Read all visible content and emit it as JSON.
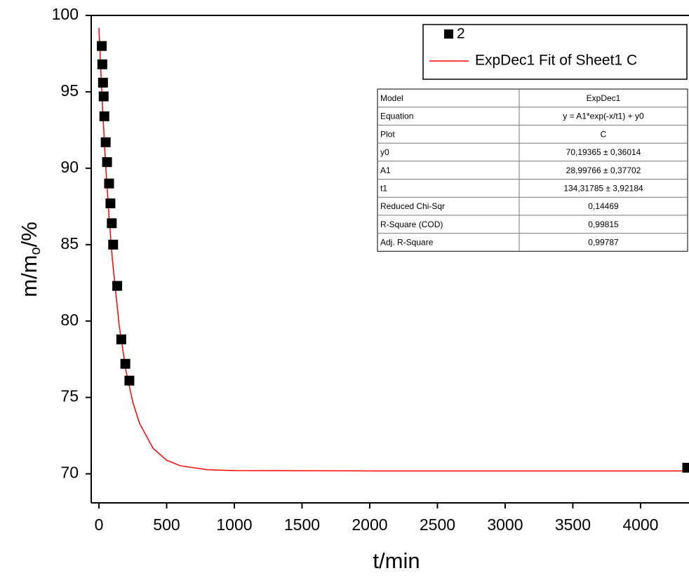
{
  "chart_data": {
    "type": "scatter",
    "x_label": "t/min",
    "y_label_parts": [
      "m/m",
      "o",
      "/%"
    ],
    "xlim": [
      -57,
      4358
    ],
    "xticks": [
      0,
      500,
      1000,
      1500,
      2000,
      2500,
      3000,
      3500,
      4000
    ],
    "ylim": [
      68.1,
      100
    ],
    "yticks": [
      70,
      75,
      80,
      85,
      90,
      95,
      100
    ],
    "legend": "upper right",
    "series": [
      {
        "name": "2",
        "type": "scatter",
        "color": "#000000",
        "x": [
          21,
          25,
          30,
          35,
          40,
          50,
          60,
          75,
          85,
          95,
          105,
          135,
          165,
          195,
          225,
          4345
        ],
        "values": [
          98.0,
          96.8,
          95.6,
          94.7,
          93.4,
          91.7,
          90.4,
          89.0,
          87.7,
          86.4,
          85.0,
          82.3,
          78.8,
          77.2,
          76.1,
          70.4
        ]
      },
      {
        "name": "ExpDec1 Fit of Sheet1 C",
        "type": "line",
        "color": "#ff0000",
        "x": [
          0,
          25,
          50,
          75,
          100,
          150,
          200,
          250,
          300,
          400,
          500,
          600,
          800,
          1000,
          2000,
          3000,
          4358
        ],
        "values": [
          99.19,
          94.27,
          90.18,
          86.79,
          83.97,
          79.68,
          76.73,
          74.7,
          73.3,
          71.67,
          70.89,
          70.53,
          70.27,
          70.21,
          70.19,
          70.19,
          70.19
        ]
      }
    ],
    "stats_table": {
      "rows": [
        [
          "Model",
          "ExpDec1"
        ],
        [
          "Equation",
          "y = A1*exp(-x/t1) + y0"
        ],
        [
          "Plot",
          "C"
        ],
        [
          "y0",
          "70,19365 ± 0,36014"
        ],
        [
          "A1",
          "28,99766 ± 0,37702"
        ],
        [
          "t1",
          "134,31785 ± 3,92184"
        ],
        [
          "Reduced Chi-Sqr",
          "0,14469"
        ],
        [
          "R-Square (COD)",
          "0,99815"
        ],
        [
          "Adj. R-Square",
          "0,99787"
        ]
      ]
    }
  }
}
